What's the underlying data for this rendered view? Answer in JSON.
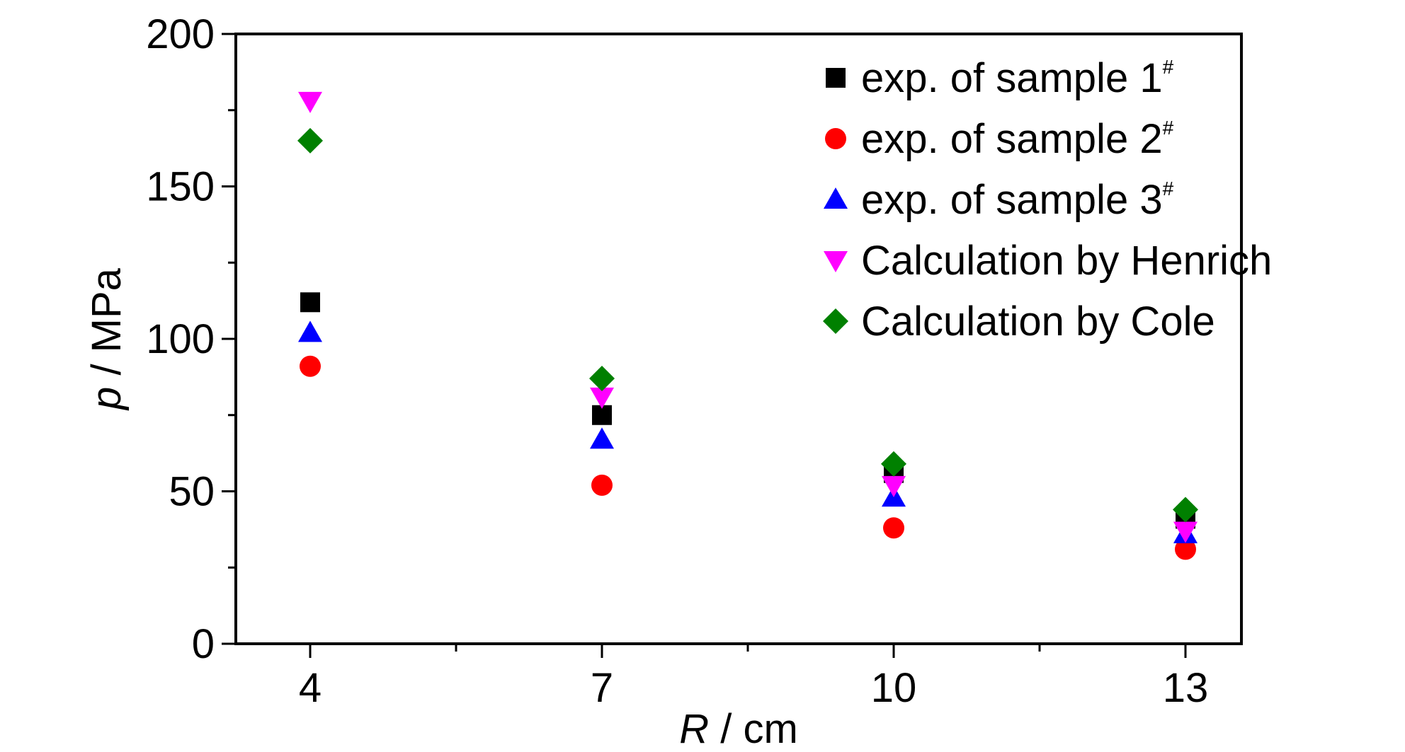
{
  "chart_data": {
    "type": "scatter",
    "xlabel": {
      "var": "R",
      "unit": " / cm"
    },
    "ylabel": {
      "var": "p",
      "unit": " / MPa"
    },
    "x_categories": [
      "4",
      "7",
      "10",
      "13"
    ],
    "x_values": [
      4,
      7,
      10,
      13
    ],
    "ylim": [
      0,
      200
    ],
    "yticks": [
      0,
      50,
      100,
      150,
      200
    ],
    "legend_position": "top-right",
    "series": [
      {
        "name": "exp. of sample 1",
        "sup": "#",
        "marker": "square",
        "color": "#000000",
        "values": [
          112,
          75,
          56,
          41
        ]
      },
      {
        "name": "exp. of sample 2",
        "sup": "#",
        "marker": "circle",
        "color": "#ff0000",
        "values": [
          91,
          52,
          38,
          31
        ]
      },
      {
        "name": "exp. of sample 3",
        "sup": "#",
        "marker": "triangle-up",
        "color": "#0000ff",
        "values": [
          102,
          67,
          48,
          36
        ]
      },
      {
        "name": "Calculation by Henrich",
        "sup": "",
        "marker": "triangle-down",
        "color": "#ff00ff",
        "values": [
          178,
          81,
          52,
          37
        ]
      },
      {
        "name": "Calculation by Cole",
        "sup": "",
        "marker": "diamond",
        "color": "#008000",
        "values": [
          165,
          87,
          59,
          44
        ]
      }
    ]
  }
}
